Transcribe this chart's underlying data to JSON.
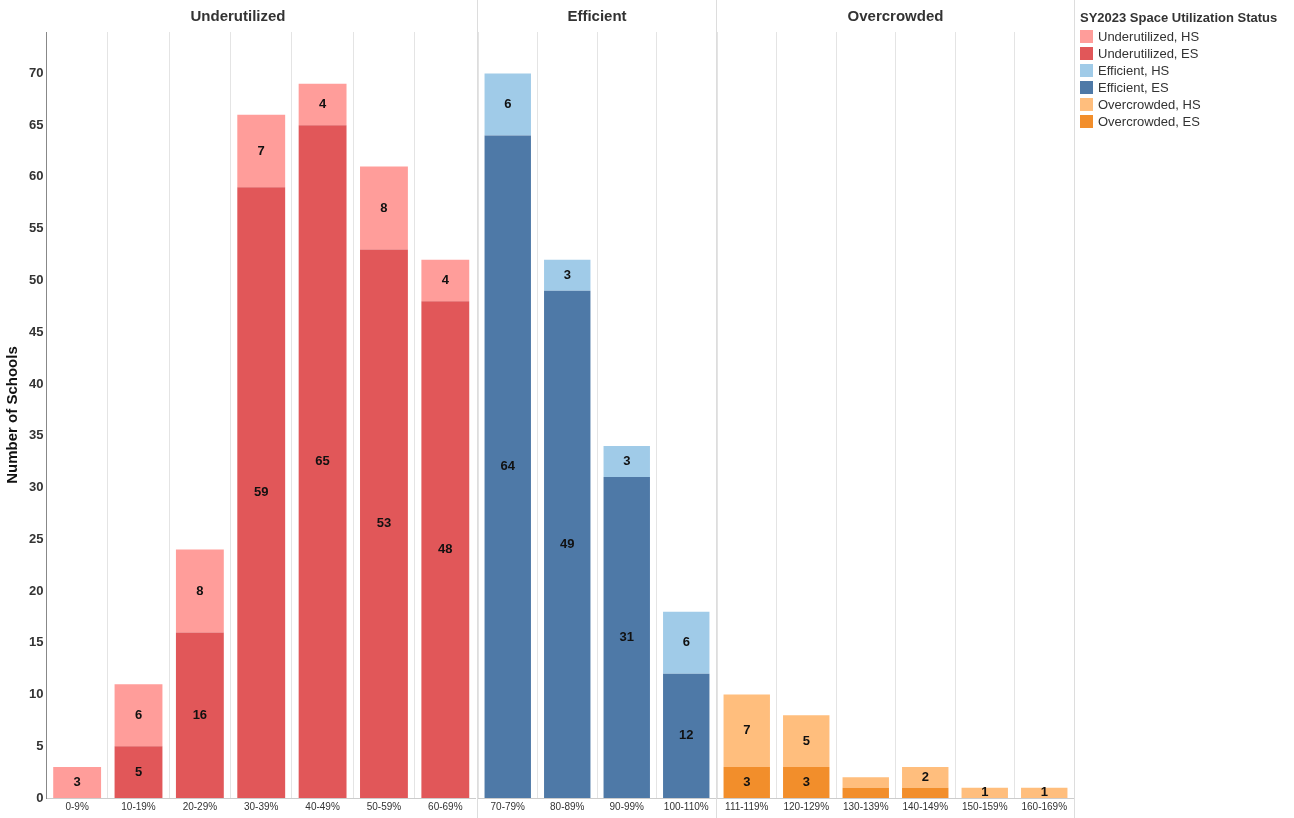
{
  "chart_data": [
    {
      "type": "bar",
      "title": "Underutilized",
      "ylabel": "Number of Schools",
      "categories": [
        "0-9%",
        "10-19%",
        "20-29%",
        "30-39%",
        "40-49%",
        "50-59%",
        "60-69%"
      ],
      "stacked": true,
      "ylim": [
        0,
        74
      ],
      "yticks": [
        0,
        5,
        10,
        15,
        20,
        25,
        30,
        35,
        40,
        45,
        50,
        55,
        60,
        65,
        70
      ],
      "grid": "x",
      "data_labels": true,
      "legend": "right",
      "series": [
        {
          "name": "Underutilized, ES",
          "color": "#e15759",
          "values": [
            0,
            5,
            16,
            59,
            65,
            53,
            48
          ],
          "value_labels": [
            null,
            "5",
            "16",
            "59",
            "65",
            "53",
            "48"
          ]
        },
        {
          "name": "Underutilized, HS",
          "color": "#ff9d9a",
          "values": [
            3,
            6,
            8,
            7,
            4,
            8,
            4
          ],
          "value_labels": [
            "3",
            "6",
            "8",
            "7",
            "4",
            "8",
            "4"
          ]
        }
      ]
    },
    {
      "type": "bar",
      "title": "Efficient",
      "categories": [
        "70-79%",
        "80-89%",
        "90-99%",
        "100-110%"
      ],
      "stacked": true,
      "ylim": [
        0,
        74
      ],
      "yticks": [
        0,
        5,
        10,
        15,
        20,
        25,
        30,
        35,
        40,
        45,
        50,
        55,
        60,
        65,
        70
      ],
      "tick_labels": "x",
      "grid": "x",
      "data_labels": true,
      "legend": "right",
      "series": [
        {
          "name": "Efficient, ES",
          "color": "#4e79a7",
          "values": [
            64,
            49,
            31,
            12
          ],
          "value_labels": [
            "64",
            "49",
            "31",
            "12"
          ]
        },
        {
          "name": "Efficient, HS",
          "color": "#a0cbe8",
          "values": [
            6,
            3,
            3,
            6
          ],
          "value_labels": [
            "6",
            "3",
            "3",
            "6"
          ]
        }
      ]
    },
    {
      "type": "bar",
      "title": "Overcrowded",
      "categories": [
        "111-119%",
        "120-129%",
        "130-139%",
        "140-149%",
        "150-159%",
        "160-169%"
      ],
      "stacked": true,
      "ylim": [
        0,
        74
      ],
      "yticks": [
        0,
        5,
        10,
        15,
        20,
        25,
        30,
        35,
        40,
        45,
        50,
        55,
        60,
        65,
        70
      ],
      "tick_labels": "x",
      "grid": "x",
      "data_labels": true,
      "legend": "right",
      "legend_title": "SY2023 Space Utilization Status",
      "series": [
        {
          "name": "Overcrowded, ES",
          "color": "#f28e2b",
          "values": [
            3,
            3,
            1,
            1,
            null,
            null
          ],
          "value_labels": [
            "3",
            "3",
            null,
            null,
            null,
            null
          ]
        },
        {
          "name": "Overcrowded, HS",
          "color": "#ffbe7d",
          "values": [
            7,
            5,
            1,
            2,
            1,
            1
          ],
          "value_labels": [
            "7",
            "5",
            null,
            "2",
            "1",
            "1"
          ]
        }
      ]
    }
  ]
}
